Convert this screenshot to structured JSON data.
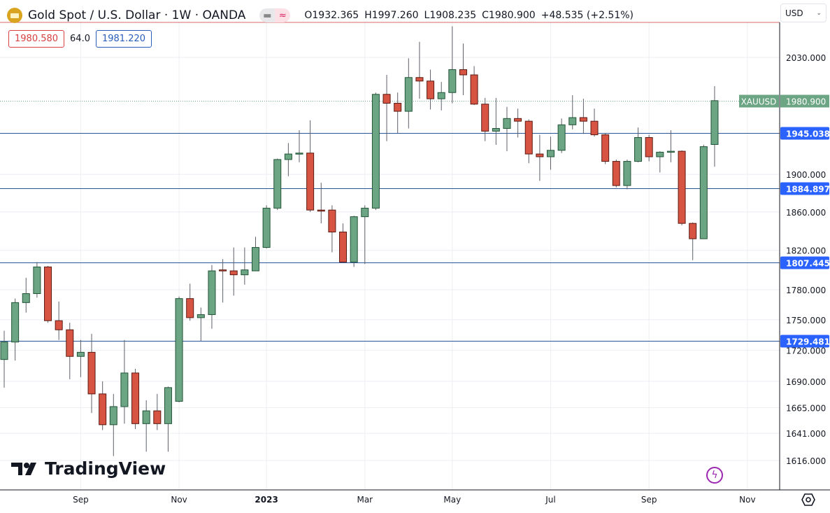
{
  "header": {
    "symbol_title": "Gold Spot / U.S. Dollar · 1W · OANDA",
    "open": "O1932.365",
    "high": "H1997.260",
    "low": "L1908.235",
    "close": "C1980.900",
    "change": "+48.535 (+2.51%)",
    "sell_price": "1980.580",
    "spread": "64.0",
    "buy_price": "1981.220"
  },
  "currency_selector": "USD",
  "branding": "TradingView",
  "colors": {
    "up": "#6ba583",
    "up_border": "#225437",
    "down": "#d75442",
    "down_border": "#5b1a13",
    "level_line": "#2a5599",
    "level_label": "#2962ff",
    "last_price": "#6ba583"
  },
  "chart_data": {
    "type": "candlestick",
    "symbol": "XAUUSD",
    "interval": "1W",
    "y_scale": "log",
    "ylim": [
      1600,
      2075
    ],
    "grid": true,
    "y_ticks": [
      "2030.000",
      "1900.000",
      "1860.000",
      "1820.000",
      "1780.000",
      "1750.000",
      "1720.000",
      "1690.000",
      "1665.000",
      "1641.000",
      "1616.000"
    ],
    "x_ticks": [
      {
        "label": "Sep",
        "date": "2022-09-05"
      },
      {
        "label": "Nov",
        "date": "2022-11-07"
      },
      {
        "label": "2023",
        "date": "2023-01-02",
        "bold": true
      },
      {
        "label": "Mar",
        "date": "2023-03-06"
      },
      {
        "label": "May",
        "date": "2023-05-01"
      },
      {
        "label": "Jul",
        "date": "2023-07-03"
      },
      {
        "label": "Sep",
        "date": "2023-09-04"
      },
      {
        "label": "Nov",
        "date": "2023-11-06"
      }
    ],
    "horizontal_levels": [
      "1945.038",
      "1884.897",
      "1807.445",
      "1729.481"
    ],
    "last_price": {
      "label": "XAUUSD",
      "value": "1980.900"
    },
    "candles": [
      {
        "d": "2022-07-18",
        "o": 1711,
        "h": 1739,
        "l": 1684,
        "c": 1728
      },
      {
        "d": "2022-07-25",
        "o": 1728,
        "h": 1771,
        "l": 1710,
        "c": 1767
      },
      {
        "d": "2022-08-01",
        "o": 1767,
        "h": 1792,
        "l": 1757,
        "c": 1776
      },
      {
        "d": "2022-08-08",
        "o": 1776,
        "h": 1808,
        "l": 1772,
        "c": 1803
      },
      {
        "d": "2022-08-15",
        "o": 1803,
        "h": 1804,
        "l": 1747,
        "c": 1749
      },
      {
        "d": "2022-08-22",
        "o": 1749,
        "h": 1768,
        "l": 1730,
        "c": 1740
      },
      {
        "d": "2022-08-29",
        "o": 1740,
        "h": 1747,
        "l": 1692,
        "c": 1714
      },
      {
        "d": "2022-09-05",
        "o": 1714,
        "h": 1730,
        "l": 1694,
        "c": 1718
      },
      {
        "d": "2022-09-12",
        "o": 1718,
        "h": 1736,
        "l": 1660,
        "c": 1678
      },
      {
        "d": "2022-09-19",
        "o": 1678,
        "h": 1690,
        "l": 1644,
        "c": 1649
      },
      {
        "d": "2022-09-26",
        "o": 1649,
        "h": 1678,
        "l": 1620,
        "c": 1666
      },
      {
        "d": "2022-10-03",
        "o": 1666,
        "h": 1730,
        "l": 1650,
        "c": 1698
      },
      {
        "d": "2022-10-10",
        "o": 1698,
        "h": 1702,
        "l": 1645,
        "c": 1650
      },
      {
        "d": "2022-10-17",
        "o": 1650,
        "h": 1672,
        "l": 1624,
        "c": 1662
      },
      {
        "d": "2022-10-24",
        "o": 1662,
        "h": 1678,
        "l": 1644,
        "c": 1650
      },
      {
        "d": "2022-10-31",
        "o": 1650,
        "h": 1685,
        "l": 1624,
        "c": 1684
      },
      {
        "d": "2022-11-07",
        "o": 1671,
        "h": 1773,
        "l": 1670,
        "c": 1771
      },
      {
        "d": "2022-11-14",
        "o": 1771,
        "h": 1786,
        "l": 1749,
        "c": 1752
      },
      {
        "d": "2022-11-21",
        "o": 1752,
        "h": 1762,
        "l": 1729,
        "c": 1755
      },
      {
        "d": "2022-11-28",
        "o": 1755,
        "h": 1805,
        "l": 1741,
        "c": 1799
      },
      {
        "d": "2022-12-05",
        "o": 1800,
        "h": 1811,
        "l": 1767,
        "c": 1799
      },
      {
        "d": "2022-12-12",
        "o": 1799,
        "h": 1823,
        "l": 1774,
        "c": 1795
      },
      {
        "d": "2022-12-19",
        "o": 1795,
        "h": 1823,
        "l": 1785,
        "c": 1800
      },
      {
        "d": "2022-12-26",
        "o": 1799,
        "h": 1834,
        "l": 1799,
        "c": 1823
      },
      {
        "d": "2023-01-02",
        "o": 1823,
        "h": 1867,
        "l": 1822,
        "c": 1864
      },
      {
        "d": "2023-01-09",
        "o": 1864,
        "h": 1917,
        "l": 1862,
        "c": 1916
      },
      {
        "d": "2023-01-16",
        "o": 1916,
        "h": 1934,
        "l": 1898,
        "c": 1922
      },
      {
        "d": "2023-01-23",
        "o": 1922,
        "h": 1948,
        "l": 1913,
        "c": 1923
      },
      {
        "d": "2023-01-30",
        "o": 1923,
        "h": 1959,
        "l": 1860,
        "c": 1862
      },
      {
        "d": "2023-02-06",
        "o": 1862,
        "h": 1891,
        "l": 1848,
        "c": 1861
      },
      {
        "d": "2023-02-13",
        "o": 1862,
        "h": 1867,
        "l": 1818,
        "c": 1839
      },
      {
        "d": "2023-02-20",
        "o": 1839,
        "h": 1848,
        "l": 1808,
        "c": 1808
      },
      {
        "d": "2023-02-27",
        "o": 1808,
        "h": 1856,
        "l": 1803,
        "c": 1855
      },
      {
        "d": "2023-03-06",
        "o": 1855,
        "h": 1867,
        "l": 1806,
        "c": 1864
      },
      {
        "d": "2023-03-13",
        "o": 1864,
        "h": 1990,
        "l": 1862,
        "c": 1988
      },
      {
        "d": "2023-03-20",
        "o": 1988,
        "h": 2010,
        "l": 1936,
        "c": 1978
      },
      {
        "d": "2023-03-27",
        "o": 1978,
        "h": 1990,
        "l": 1945,
        "c": 1969
      },
      {
        "d": "2023-04-03",
        "o": 1969,
        "h": 2029,
        "l": 1950,
        "c": 2007
      },
      {
        "d": "2023-04-10",
        "o": 2007,
        "h": 2048,
        "l": 1983,
        "c": 2003
      },
      {
        "d": "2023-04-17",
        "o": 2003,
        "h": 2016,
        "l": 1971,
        "c": 1983
      },
      {
        "d": "2023-04-24",
        "o": 1983,
        "h": 2002,
        "l": 1970,
        "c": 1990
      },
      {
        "d": "2023-05-01",
        "o": 1990,
        "h": 2066,
        "l": 1978,
        "c": 2016
      },
      {
        "d": "2023-05-08",
        "o": 2016,
        "h": 2046,
        "l": 1987,
        "c": 2010
      },
      {
        "d": "2023-05-15",
        "o": 2010,
        "h": 2020,
        "l": 1976,
        "c": 1977
      },
      {
        "d": "2023-05-22",
        "o": 1977,
        "h": 1984,
        "l": 1936,
        "c": 1947
      },
      {
        "d": "2023-05-29",
        "o": 1947,
        "h": 1984,
        "l": 1932,
        "c": 1950
      },
      {
        "d": "2023-06-05",
        "o": 1950,
        "h": 1974,
        "l": 1925,
        "c": 1961
      },
      {
        "d": "2023-06-12",
        "o": 1961,
        "h": 1972,
        "l": 1940,
        "c": 1958
      },
      {
        "d": "2023-06-19",
        "o": 1958,
        "h": 1960,
        "l": 1912,
        "c": 1922
      },
      {
        "d": "2023-06-26",
        "o": 1922,
        "h": 1943,
        "l": 1893,
        "c": 1919
      },
      {
        "d": "2023-07-03",
        "o": 1919,
        "h": 1941,
        "l": 1905,
        "c": 1926
      },
      {
        "d": "2023-07-10",
        "o": 1926,
        "h": 1961,
        "l": 1923,
        "c": 1954
      },
      {
        "d": "2023-07-17",
        "o": 1954,
        "h": 1987,
        "l": 1949,
        "c": 1962
      },
      {
        "d": "2023-07-24",
        "o": 1962,
        "h": 1983,
        "l": 1944,
        "c": 1958
      },
      {
        "d": "2023-07-31",
        "o": 1958,
        "h": 1972,
        "l": 1941,
        "c": 1943
      },
      {
        "d": "2023-08-07",
        "o": 1943,
        "h": 1945,
        "l": 1911,
        "c": 1914
      },
      {
        "d": "2023-08-14",
        "o": 1914,
        "h": 1916,
        "l": 1886,
        "c": 1888
      },
      {
        "d": "2023-08-21",
        "o": 1888,
        "h": 1916,
        "l": 1884,
        "c": 1914
      },
      {
        "d": "2023-08-28",
        "o": 1914,
        "h": 1951,
        "l": 1913,
        "c": 1940
      },
      {
        "d": "2023-09-04",
        "o": 1940,
        "h": 1943,
        "l": 1914,
        "c": 1919
      },
      {
        "d": "2023-09-11",
        "o": 1919,
        "h": 1925,
        "l": 1902,
        "c": 1924
      },
      {
        "d": "2023-09-18",
        "o": 1924,
        "h": 1948,
        "l": 1913,
        "c": 1925
      },
      {
        "d": "2023-09-25",
        "o": 1925,
        "h": 1926,
        "l": 1846,
        "c": 1848
      },
      {
        "d": "2023-10-02",
        "o": 1848,
        "h": 1849,
        "l": 1810,
        "c": 1832
      },
      {
        "d": "2023-10-09",
        "o": 1832,
        "h": 1932,
        "l": 1832,
        "c": 1930
      },
      {
        "d": "2023-10-16",
        "o": 1932.365,
        "h": 1997.26,
        "l": 1908.235,
        "c": 1980.9
      }
    ]
  }
}
